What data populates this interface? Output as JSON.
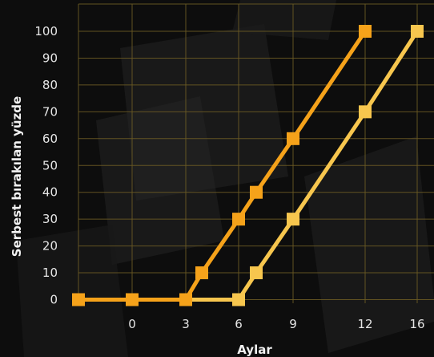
{
  "chart_data": {
    "type": "line",
    "title": "",
    "xlabel": "Aylar",
    "ylabel": "Serbest bırakılan yüzde",
    "x_ticks": [
      "0",
      "3",
      "6",
      "9",
      "12",
      "16"
    ],
    "y_ticks": [
      "0",
      "10",
      "20",
      "30",
      "40",
      "50",
      "60",
      "70",
      "80",
      "90",
      "100"
    ],
    "ylim": [
      0,
      100
    ],
    "grid": true,
    "series": [
      {
        "color": "#f5a21a",
        "points": [
          {
            "x": "-3",
            "y": 0
          },
          {
            "x": "0",
            "y": 0
          },
          {
            "x": "3",
            "y": 0
          },
          {
            "x": "4",
            "y": 10
          },
          {
            "x": "6",
            "y": 30
          },
          {
            "x": "7",
            "y": 40
          },
          {
            "x": "9",
            "y": 60
          },
          {
            "x": "12",
            "y": 100
          }
        ]
      },
      {
        "color": "#f7c64e",
        "points": [
          {
            "x": "3",
            "y": 0
          },
          {
            "x": "6",
            "y": 0
          },
          {
            "x": "7",
            "y": 10
          },
          {
            "x": "9",
            "y": 30
          },
          {
            "x": "12",
            "y": 70
          },
          {
            "x": "16",
            "y": 100
          }
        ]
      }
    ]
  },
  "colors": {
    "background": "#0d0d0d",
    "grid": "#6b5a24",
    "text": "#e6e6e6"
  }
}
